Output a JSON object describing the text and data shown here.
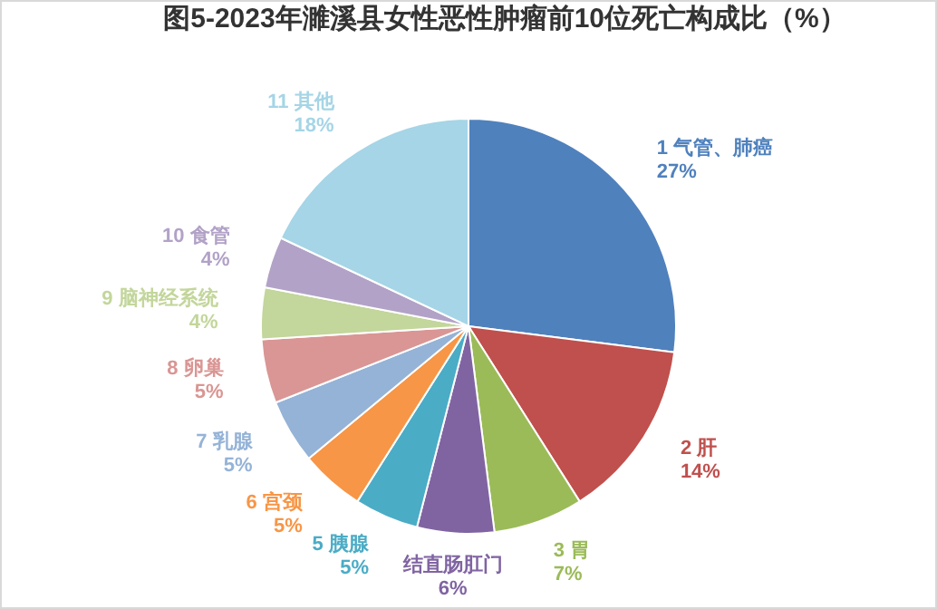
{
  "chart_data": {
    "type": "pie",
    "title": "图5-2023年濉溪县女性恶性肿瘤前10位死亡构成比（%）",
    "categories": [
      "1 气管、肺癌",
      "2 肝",
      "3 胃",
      "结直肠肛门",
      "5 胰腺",
      "6 宫颈",
      "7 乳腺",
      "8 卵巢",
      "9 脑神经系统",
      "10 食管",
      "11 其他"
    ],
    "values": [
      27,
      14,
      7,
      6,
      5,
      5,
      5,
      5,
      4,
      4,
      18
    ],
    "value_labels": [
      "27%",
      "14%",
      "7%",
      "6%",
      "5%",
      "5%",
      "5%",
      "5%",
      "4%",
      "4%",
      "18%"
    ],
    "colors": [
      "#4f81bd",
      "#c0504d",
      "#9bbb59",
      "#8064a2",
      "#4bacc6",
      "#f79646",
      "#95b3d7",
      "#d99694",
      "#c3d69b",
      "#b2a2c7",
      "#a5d5e6"
    ],
    "legend": false
  }
}
